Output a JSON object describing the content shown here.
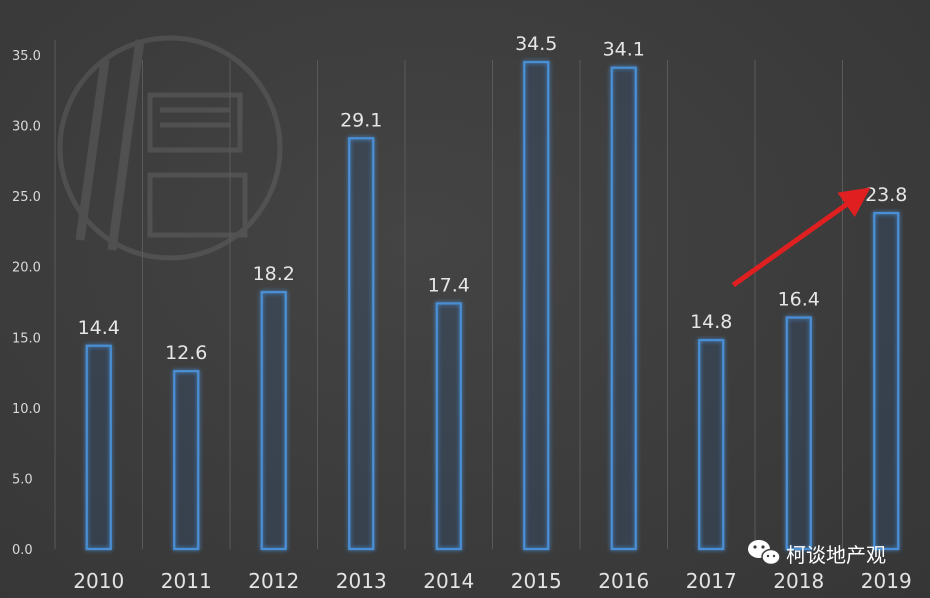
{
  "chart_data": {
    "type": "bar",
    "categories": [
      "2010",
      "2011",
      "2012",
      "2013",
      "2014",
      "2015",
      "2016",
      "2017",
      "2018",
      "2019"
    ],
    "values": [
      14.4,
      12.6,
      18.2,
      29.1,
      17.4,
      34.5,
      34.1,
      14.8,
      16.4,
      23.8
    ],
    "value_labels": [
      "14.4",
      "12.6",
      "18.2",
      "29.1",
      "17.4",
      "34.5",
      "34.1",
      "14.8",
      "16.4",
      "23.8"
    ],
    "yticks": [
      "0.0",
      "5.0",
      "10.0",
      "15.0",
      "20.0",
      "25.0",
      "30.0",
      "35.0"
    ],
    "ylim": [
      0,
      35
    ],
    "grid": false,
    "legend": "none",
    "title": "",
    "xlabel": "",
    "ylabel": "",
    "annotation": {
      "type": "arrow",
      "from_category": "2017",
      "to_category": "2019",
      "color": "#e02020"
    },
    "colors": {
      "background": "#3b3b3b",
      "bar_stroke": "#4a8fd6",
      "bar_glow": "#2f6fb8",
      "text": "#e3e3e3",
      "divider": "#5a5a5a",
      "arrow": "#e02020"
    }
  },
  "watermark": {
    "label": "柯谈地产观",
    "icon": "wechat-icon"
  }
}
